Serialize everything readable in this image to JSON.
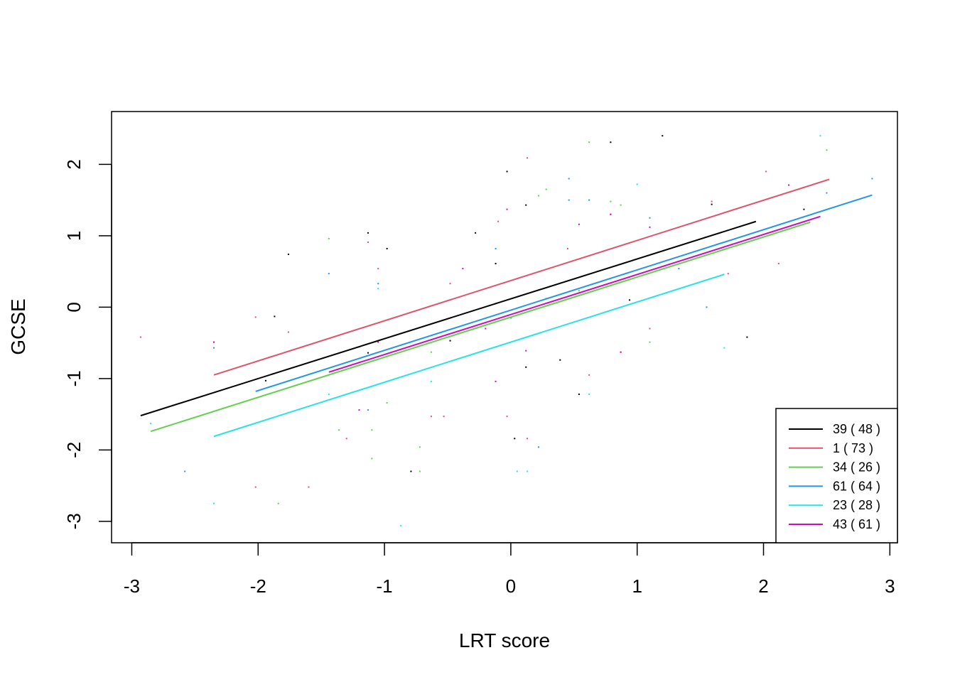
{
  "chart_data": {
    "type": "line",
    "title": "",
    "xlabel": "LRT score",
    "ylabel": "GCSE",
    "xlim": [
      -3.16,
      3.06
    ],
    "ylim": [
      -3.3,
      2.74
    ],
    "xticks": [
      -3,
      -2,
      -1,
      0,
      1,
      2,
      3
    ],
    "yticks": [
      -3,
      -2,
      -1,
      0,
      1,
      2
    ],
    "xtick_labels": [
      "-3",
      "-2",
      "-1",
      "0",
      "1",
      "2",
      "3"
    ],
    "ytick_labels": [
      "-3",
      "-2",
      "-1",
      "0",
      "1",
      "2"
    ],
    "grid": false,
    "legend_position": "bottom-right",
    "series": [
      {
        "name": "39 ( 48 )",
        "color": "#000000",
        "x": [
          -2.93,
          1.94
        ],
        "y": [
          -1.52,
          1.2
        ],
        "points": [
          [
            -1.94,
            -1.03
          ],
          [
            -1.87,
            -0.13
          ],
          [
            -1.76,
            0.74
          ],
          [
            -1.13,
            1.04
          ],
          [
            -0.98,
            0.82
          ],
          [
            -0.48,
            -0.47
          ],
          [
            -0.28,
            1.04
          ],
          [
            -0.12,
            0.61
          ],
          [
            -0.03,
            1.9
          ],
          [
            0.03,
            -1.84
          ],
          [
            0.12,
            1.43
          ],
          [
            0.12,
            -0.84
          ],
          [
            0.39,
            -0.74
          ],
          [
            0.54,
            -1.22
          ],
          [
            0.79,
            2.31
          ],
          [
            1.2,
            2.4
          ],
          [
            1.59,
            1.44
          ],
          [
            1.87,
            -0.42
          ],
          [
            2.32,
            1.37
          ],
          [
            -0.79,
            -2.3
          ],
          [
            -1.13,
            -0.64
          ],
          [
            0.94,
            0.1
          ]
        ]
      },
      {
        "name": "1 ( 73 )",
        "color": "#DF536B",
        "x": [
          -2.35,
          2.52
        ],
        "y": [
          -0.95,
          1.79
        ],
        "points": [
          [
            -2.93,
            -0.42
          ],
          [
            -2.35,
            -0.49
          ],
          [
            -2.02,
            -0.14
          ],
          [
            -1.76,
            -0.35
          ],
          [
            -1.13,
            0.91
          ],
          [
            -1.05,
            0.54
          ],
          [
            -0.63,
            -1.53
          ],
          [
            -0.53,
            -1.53
          ],
          [
            -0.48,
            0.33
          ],
          [
            -0.12,
            0.05
          ],
          [
            -0.1,
            1.2
          ],
          [
            -0.03,
            -1.53
          ],
          [
            0.13,
            2.09
          ],
          [
            0.13,
            -1.84
          ],
          [
            0.62,
            -0.95
          ],
          [
            0.79,
            1.3
          ],
          [
            1.1,
            -0.3
          ],
          [
            1.59,
            1.48
          ],
          [
            2.02,
            1.9
          ],
          [
            2.12,
            0.61
          ],
          [
            -2.02,
            -2.52
          ],
          [
            -1.6,
            -2.52
          ],
          [
            -1.3,
            -1.84
          ],
          [
            0.87,
            -0.63
          ],
          [
            1.72,
            0.47
          ],
          [
            0.45,
            0.82
          ]
        ]
      },
      {
        "name": "34 ( 26 )",
        "color": "#61D04F",
        "x": [
          -2.85,
          2.37
        ],
        "y": [
          -1.74,
          1.19
        ],
        "points": [
          [
            -1.84,
            -2.75
          ],
          [
            -1.44,
            0.96
          ],
          [
            -1.36,
            -1.72
          ],
          [
            -1.1,
            -2.12
          ],
          [
            -1.1,
            -1.72
          ],
          [
            -0.98,
            -1.34
          ],
          [
            -0.72,
            -1.96
          ],
          [
            -0.72,
            -2.3
          ],
          [
            0.22,
            1.56
          ],
          [
            0.28,
            1.65
          ],
          [
            0.62,
            2.31
          ],
          [
            0.79,
            1.48
          ],
          [
            0.87,
            1.43
          ],
          [
            1.1,
            -0.49
          ],
          [
            2.5,
            2.2
          ],
          [
            -0.63,
            -0.63
          ],
          [
            0.54,
            0.23
          ]
        ]
      },
      {
        "name": "61 ( 64 )",
        "color": "#2297E6",
        "x": [
          -2.02,
          2.86
        ],
        "y": [
          -1.18,
          1.57
        ],
        "points": [
          [
            -2.58,
            -2.3
          ],
          [
            -2.35,
            -0.57
          ],
          [
            -1.44,
            0.47
          ],
          [
            -1.13,
            -1.44
          ],
          [
            -0.12,
            0.82
          ],
          [
            0.22,
            -1.96
          ],
          [
            0.46,
            1.8
          ],
          [
            0.46,
            1.5
          ],
          [
            0.62,
            1.5
          ],
          [
            1.1,
            1.25
          ],
          [
            1.33,
            0.54
          ],
          [
            1.55,
            0.0
          ],
          [
            2.5,
            1.6
          ],
          [
            2.86,
            1.8
          ],
          [
            -1.05,
            0.33
          ],
          [
            0.0,
            -0.15
          ]
        ]
      },
      {
        "name": "23 ( 28 )",
        "color": "#28E2E5",
        "x": [
          -2.35,
          1.69
        ],
        "y": [
          -1.81,
          0.46
        ],
        "points": [
          [
            -2.85,
            -1.63
          ],
          [
            -2.35,
            -2.75
          ],
          [
            -1.44,
            -1.22
          ],
          [
            -0.87,
            -3.06
          ],
          [
            -0.63,
            -1.04
          ],
          [
            0.05,
            -2.3
          ],
          [
            0.13,
            -2.3
          ],
          [
            0.62,
            -1.22
          ],
          [
            1.0,
            1.72
          ],
          [
            1.69,
            -0.57
          ],
          [
            2.45,
            2.4
          ],
          [
            -1.05,
            0.26
          ],
          [
            0.28,
            0.12
          ]
        ]
      },
      {
        "name": "43 ( 61 )",
        "color": "#CD0BBC",
        "x": [
          -1.44,
          2.45
        ],
        "y": [
          -0.91,
          1.27
        ],
        "points": [
          [
            -2.35,
            -0.49
          ],
          [
            -1.2,
            -1.44
          ],
          [
            -1.05,
            -0.49
          ],
          [
            -0.12,
            -1.04
          ],
          [
            -0.03,
            1.37
          ],
          [
            0.12,
            -0.61
          ],
          [
            0.54,
            1.16
          ],
          [
            0.79,
            1.3
          ],
          [
            0.87,
            -0.63
          ],
          [
            1.1,
            1.12
          ],
          [
            2.2,
            1.71
          ],
          [
            -0.38,
            0.54
          ],
          [
            -0.2,
            -0.3
          ]
        ]
      }
    ]
  }
}
